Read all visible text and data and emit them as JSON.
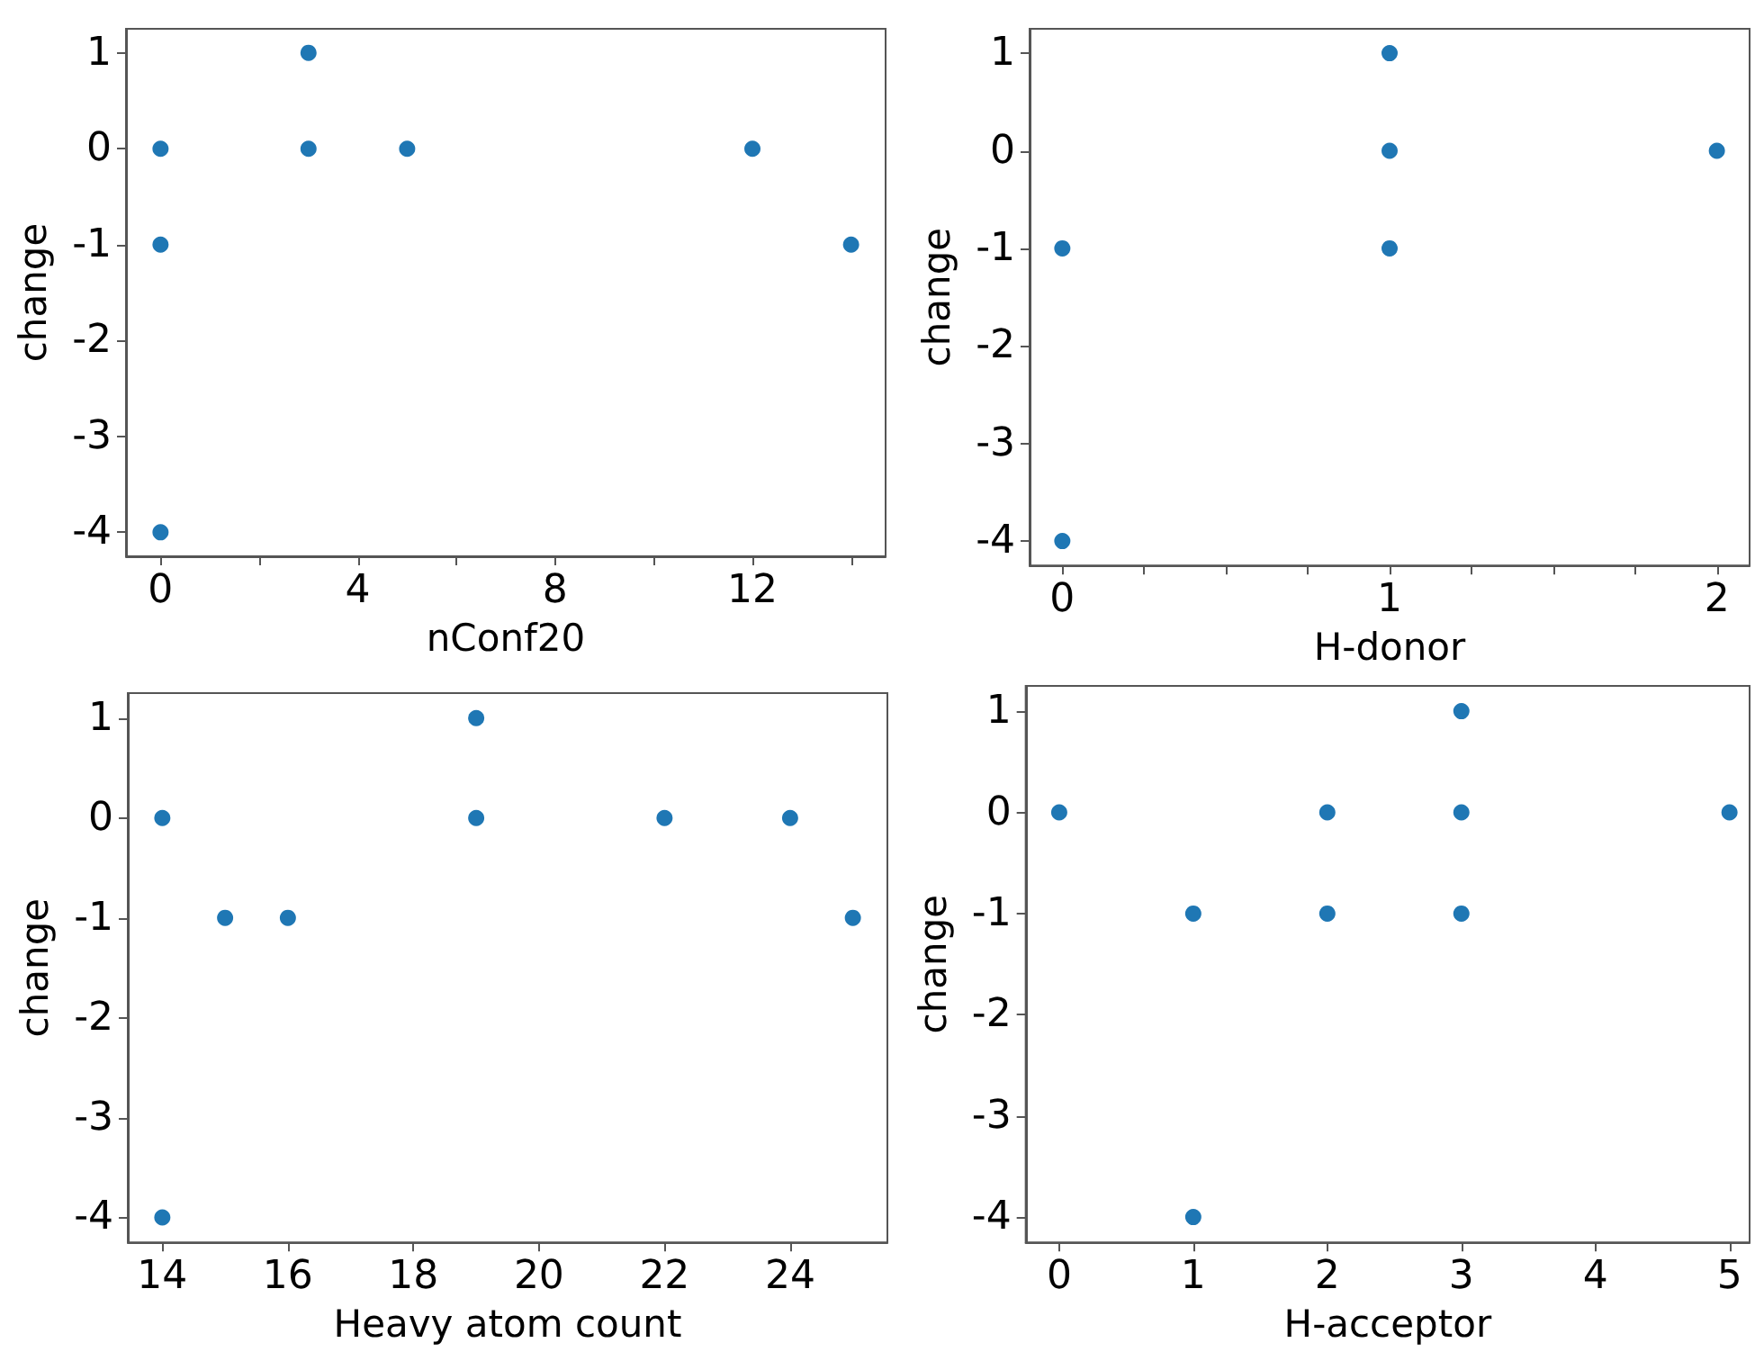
{
  "chart_data": [
    {
      "type": "scatter",
      "xlabel": "nConf20",
      "ylabel": "change",
      "color": "#1f77b4",
      "marker": "circle",
      "grid": false,
      "x": [
        0,
        0,
        0,
        3,
        3,
        5,
        12,
        14
      ],
      "values": [
        0,
        -1,
        -4,
        1,
        0,
        0,
        0,
        -1
      ],
      "xlim": [
        -0.7,
        14.7
      ],
      "xticks": [
        0,
        {
          "value": 2,
          "label": null
        },
        4,
        {
          "value": 6,
          "label": null
        },
        8,
        {
          "value": 10,
          "label": null
        },
        12,
        {
          "value": 14,
          "label": null
        }
      ],
      "ylim": [
        -4.25,
        1.25
      ],
      "yticks": [
        -4,
        -3,
        -2,
        -1,
        0,
        1
      ]
    },
    {
      "type": "scatter",
      "xlabel": "H-donor",
      "ylabel": "change",
      "color": "#1f77b4",
      "marker": "circle",
      "grid": false,
      "x": [
        0,
        0,
        1,
        1,
        1,
        2
      ],
      "values": [
        -1,
        -4,
        1,
        0,
        -1,
        0
      ],
      "xlim": [
        -0.1,
        2.1
      ],
      "xticks": [
        0,
        {
          "value": 0.25,
          "label": null
        },
        {
          "value": 0.5,
          "label": null
        },
        {
          "value": 0.75,
          "label": null
        },
        1,
        {
          "value": 1.25,
          "label": null
        },
        {
          "value": 1.5,
          "label": null
        },
        {
          "value": 1.75,
          "label": null
        },
        2
      ],
      "ylim": [
        -4.25,
        1.25
      ],
      "yticks": [
        -4,
        -3,
        -2,
        -1,
        0,
        1
      ]
    },
    {
      "type": "scatter",
      "xlabel": "Heavy atom count",
      "ylabel": "change",
      "color": "#1f77b4",
      "marker": "circle",
      "grid": false,
      "x": [
        14,
        14,
        15,
        16,
        19,
        19,
        22,
        24,
        25
      ],
      "values": [
        0,
        -4,
        -1,
        -1,
        1,
        0,
        0,
        0,
        -1
      ],
      "xlim": [
        13.45,
        25.55
      ],
      "xticks": [
        14,
        16,
        18,
        20,
        22,
        24
      ],
      "ylim": [
        -4.25,
        1.25
      ],
      "yticks": [
        -4,
        -3,
        -2,
        -1,
        0,
        1
      ]
    },
    {
      "type": "scatter",
      "xlabel": "H-acceptor",
      "ylabel": "change",
      "color": "#1f77b4",
      "marker": "circle",
      "grid": false,
      "x": [
        0,
        1,
        1,
        2,
        2,
        3,
        3,
        3,
        5
      ],
      "values": [
        0,
        -1,
        -4,
        0,
        -1,
        1,
        0,
        -1,
        0
      ],
      "xlim": [
        -0.25,
        5.15
      ],
      "xticks": [
        0,
        1,
        2,
        3,
        4,
        5
      ],
      "ylim": [
        -4.25,
        1.25
      ],
      "yticks": [
        -4,
        -3,
        -2,
        -1,
        0,
        1
      ]
    }
  ]
}
